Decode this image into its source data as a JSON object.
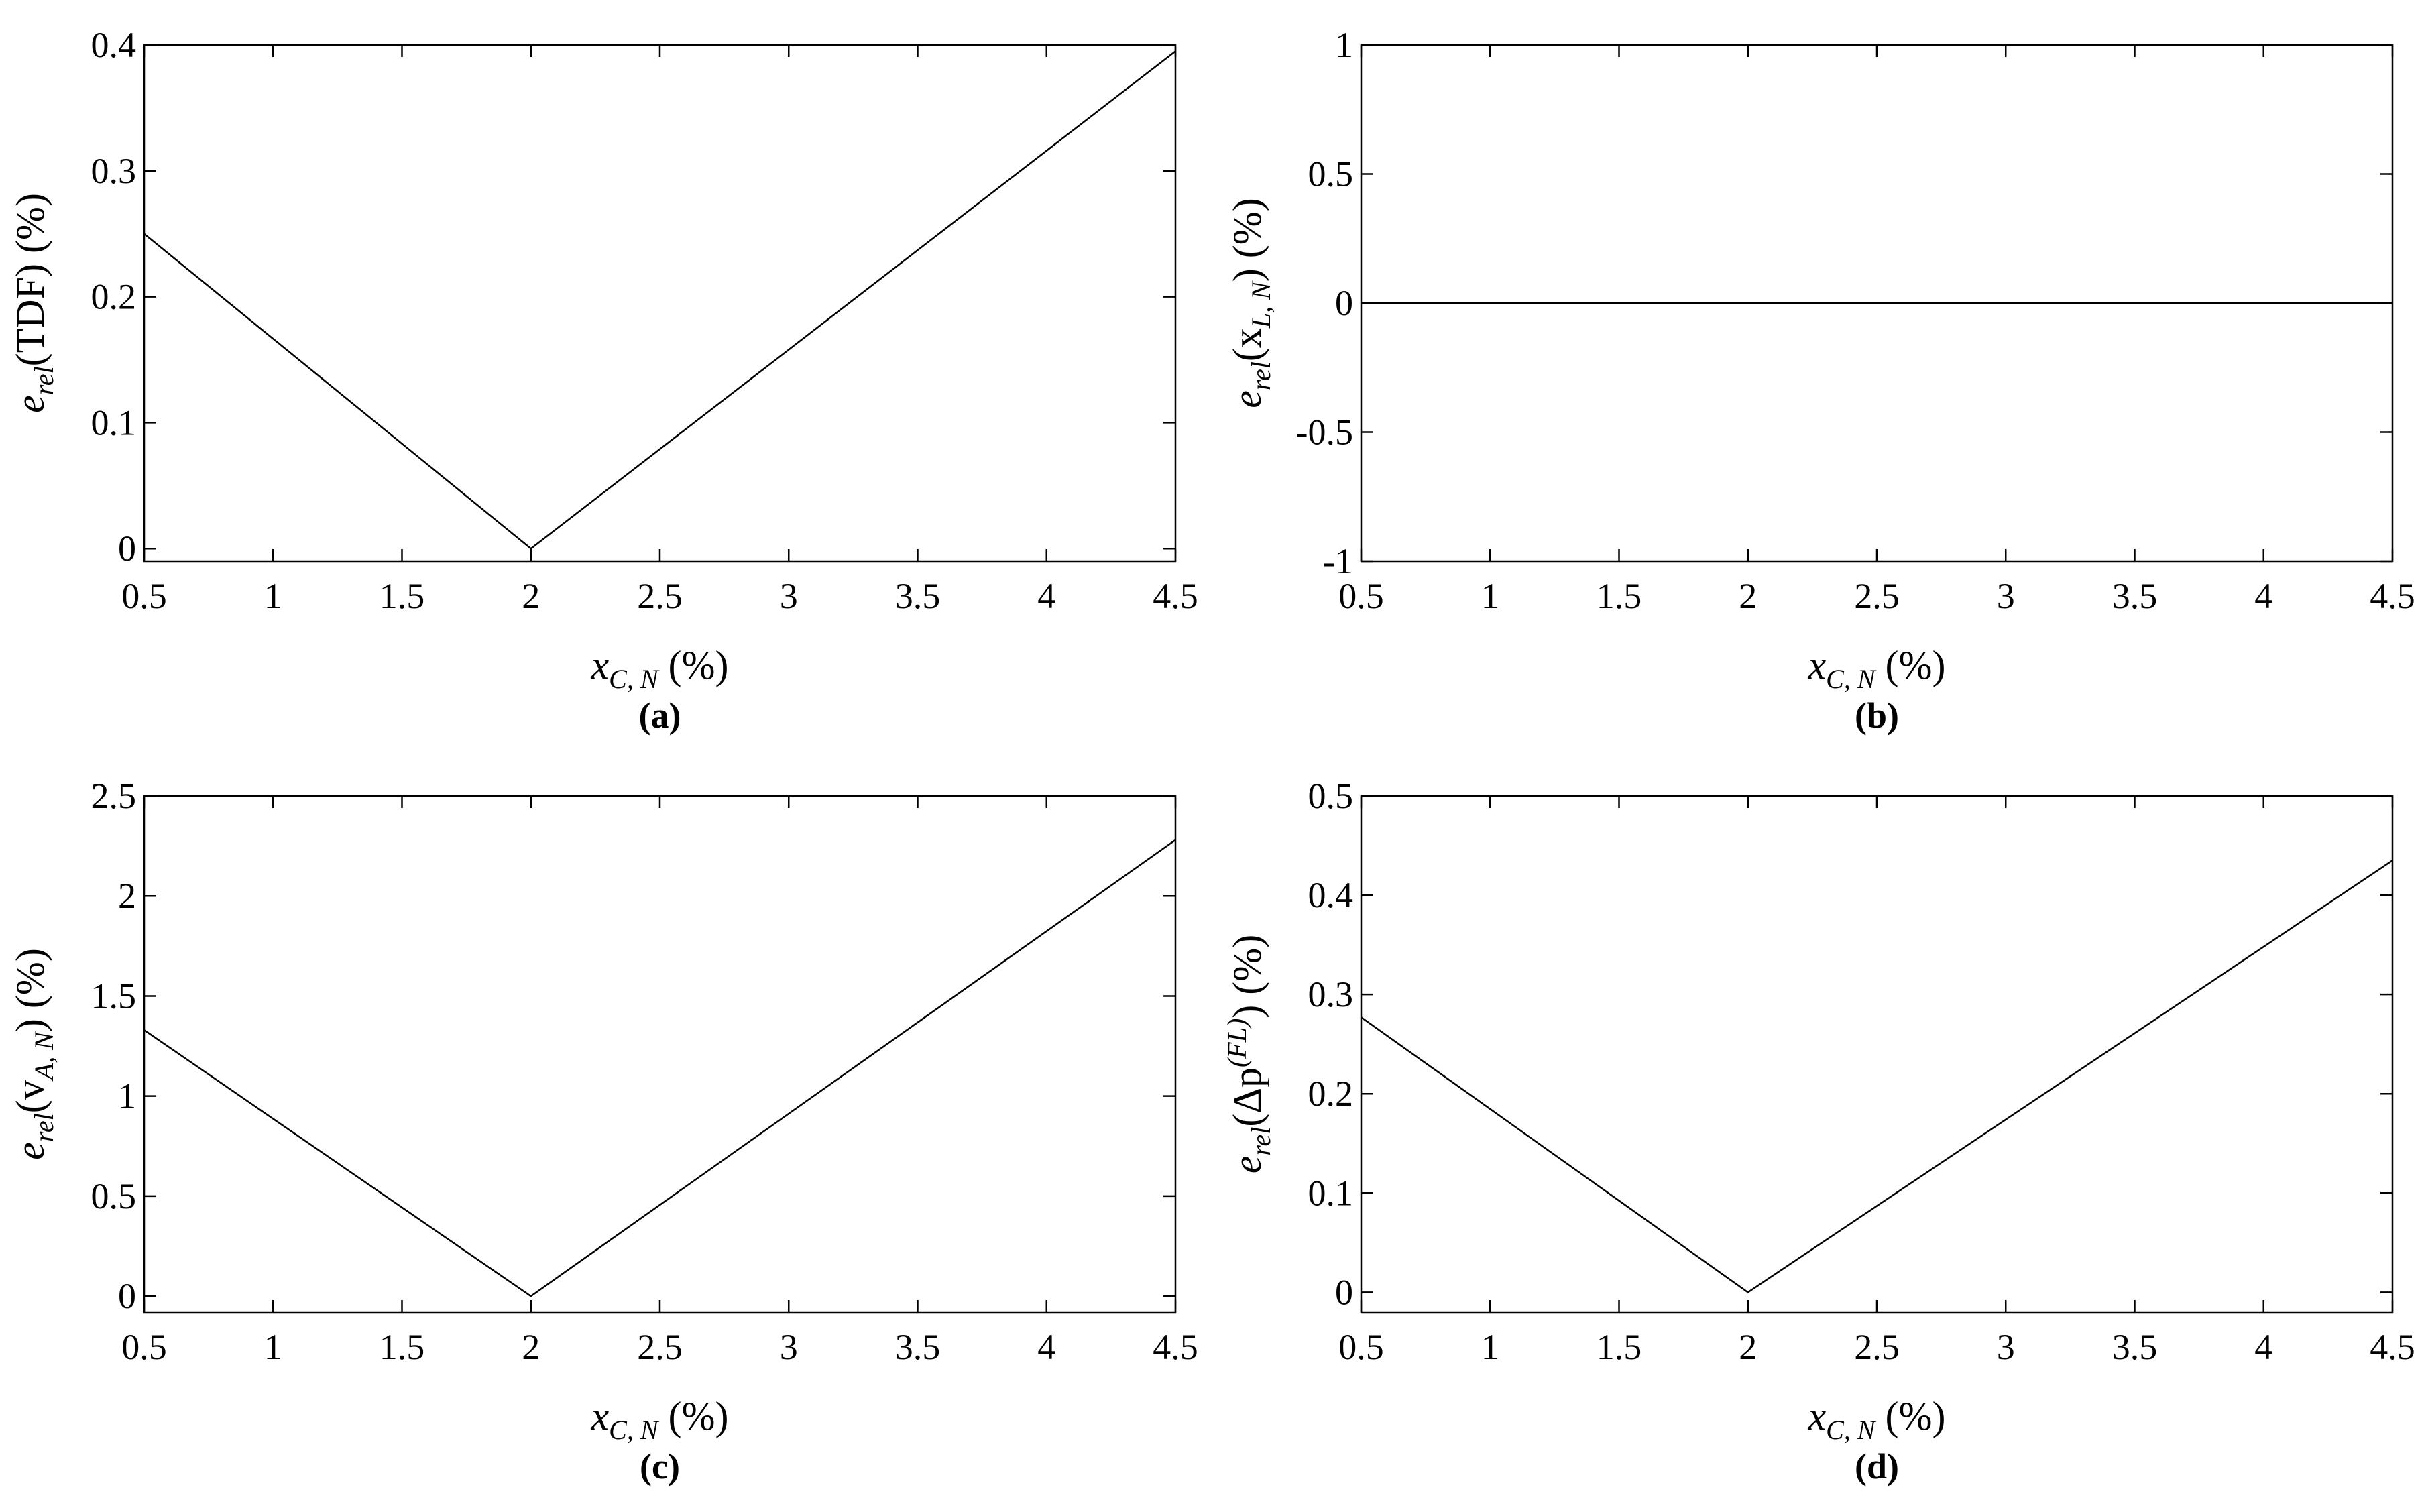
{
  "chart_data": [
    {
      "type": "line",
      "panel_label": "(a)",
      "x": [
        0.5,
        2,
        4.5
      ],
      "series": [
        {
          "values": [
            0.25,
            0,
            0.395
          ]
        }
      ],
      "xlim": [
        0.5,
        4.5
      ],
      "ylim": [
        -0.01,
        0.4
      ],
      "xticks": [
        0.5,
        1,
        1.5,
        2,
        2.5,
        3,
        3.5,
        4,
        4.5
      ],
      "xtick_labels": [
        "0.5",
        "1",
        "1.5",
        "2",
        "2.5",
        "3",
        "3.5",
        "4",
        "4.5"
      ],
      "yticks": [
        0,
        0.1,
        0.2,
        0.3,
        0.4
      ],
      "ytick_labels": [
        "0",
        "0.1",
        "0.2",
        "0.3",
        "0.4"
      ],
      "xlabel": {
        "main": "x",
        "sub": "C, N",
        "rest": " (%)"
      },
      "ylabel": {
        "main": "e",
        "sub": "rel",
        "rest": "(TDF) (%)"
      },
      "grid": false
    },
    {
      "type": "line",
      "panel_label": "(b)",
      "x": [
        0.5,
        4.5
      ],
      "series": [
        {
          "values": [
            0,
            0
          ]
        }
      ],
      "xlim": [
        0.5,
        4.5
      ],
      "ylim": [
        -1,
        1
      ],
      "xticks": [
        0.5,
        1,
        1.5,
        2,
        2.5,
        3,
        3.5,
        4,
        4.5
      ],
      "xtick_labels": [
        "0.5",
        "1",
        "1.5",
        "2",
        "2.5",
        "3",
        "3.5",
        "4",
        "4.5"
      ],
      "yticks": [
        -1,
        -0.5,
        0,
        0.5,
        1
      ],
      "ytick_labels": [
        "-1",
        "-0.5",
        "0",
        "0.5",
        "1"
      ],
      "xlabel": {
        "main": "x",
        "sub": "C, N",
        "rest": " (%)"
      },
      "ylabel": {
        "main": "e",
        "sub": "rel",
        "rest": "(x",
        "sub2": "L, N",
        "rest2": ") (%)"
      },
      "grid": false
    },
    {
      "type": "line",
      "panel_label": "(c)",
      "x": [
        0.5,
        2,
        4.5
      ],
      "series": [
        {
          "values": [
            1.33,
            0,
            2.28
          ]
        }
      ],
      "xlim": [
        0.5,
        4.5
      ],
      "ylim": [
        -0.08,
        2.5
      ],
      "xticks": [
        0.5,
        1,
        1.5,
        2,
        2.5,
        3,
        3.5,
        4,
        4.5
      ],
      "xtick_labels": [
        "0.5",
        "1",
        "1.5",
        "2",
        "2.5",
        "3",
        "3.5",
        "4",
        "4.5"
      ],
      "yticks": [
        0,
        0.5,
        1,
        1.5,
        2,
        2.5
      ],
      "ytick_labels": [
        "0",
        "0.5",
        "1",
        "1.5",
        "2",
        "2.5"
      ],
      "xlabel": {
        "main": "x",
        "sub": "C, N",
        "rest": " (%)"
      },
      "ylabel": {
        "main": "e",
        "sub": "rel",
        "rest": "(v",
        "sub2": "A, N",
        "rest2": ") (%)"
      },
      "grid": false
    },
    {
      "type": "line",
      "panel_label": "(d)",
      "x": [
        0.5,
        2,
        4.5
      ],
      "series": [
        {
          "values": [
            0.277,
            0,
            0.435
          ]
        }
      ],
      "xlim": [
        0.5,
        4.5
      ],
      "ylim": [
        -0.02,
        0.5
      ],
      "xticks": [
        0.5,
        1,
        1.5,
        2,
        2.5,
        3,
        3.5,
        4,
        4.5
      ],
      "xtick_labels": [
        "0.5",
        "1",
        "1.5",
        "2",
        "2.5",
        "3",
        "3.5",
        "4",
        "4.5"
      ],
      "yticks": [
        0,
        0.1,
        0.2,
        0.3,
        0.4,
        0.5
      ],
      "ytick_labels": [
        "0",
        "0.1",
        "0.2",
        "0.3",
        "0.4",
        "0.5"
      ],
      "xlabel": {
        "main": "x",
        "sub": "C, N",
        "rest": " (%)"
      },
      "ylabel": {
        "main": "e",
        "sub": "rel",
        "rest": "(Δp",
        "sup": "(FL)",
        "rest2": ") (%)"
      },
      "grid": false
    }
  ]
}
